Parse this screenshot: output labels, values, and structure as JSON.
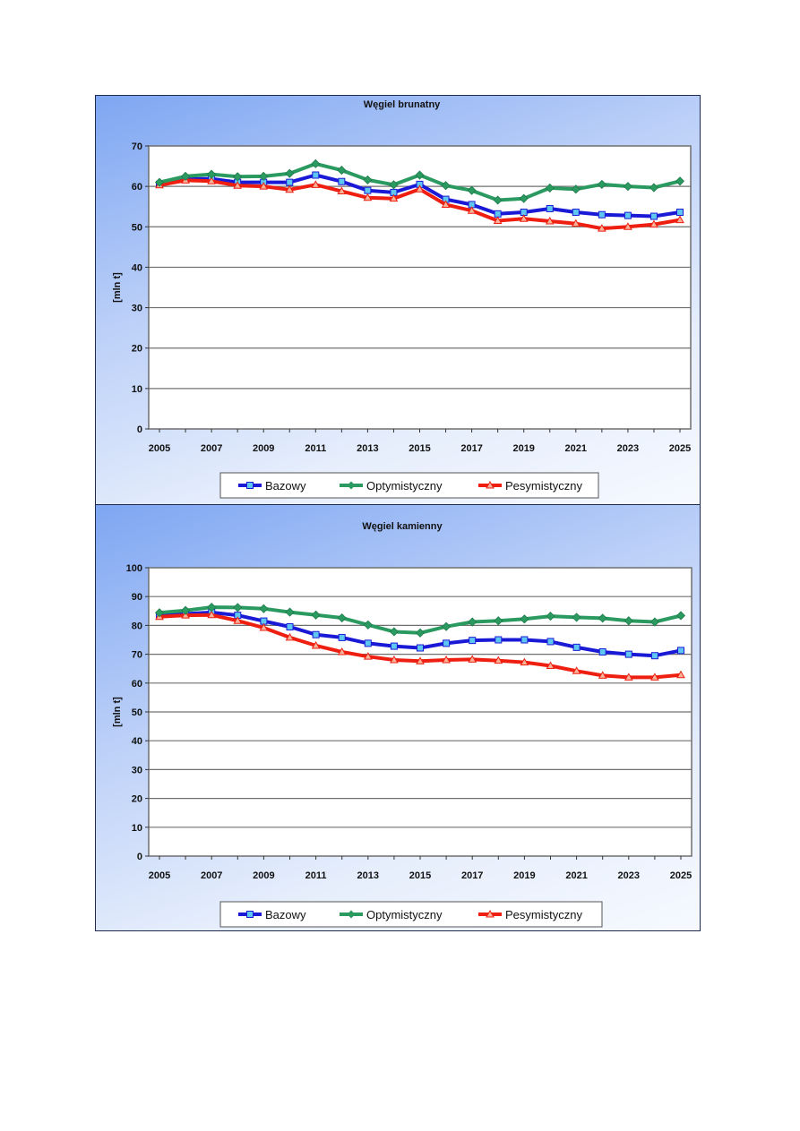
{
  "legend": [
    "Bazowy",
    "Optymistyczny",
    "Pesymistyczny"
  ],
  "colors": {
    "Bazowy": "#1a1ad6",
    "Optymistyczny": "#2a9a60",
    "Pesymistyczny": "#ee1f10",
    "Bazowy_marker": "#5ec6f0",
    "Pesymistyczny_marker": "#f7b39a"
  },
  "chart_data": [
    {
      "type": "line",
      "title": "Węgiel brunatny",
      "xlabel": "",
      "ylabel": "[mln t]",
      "ylim": [
        0,
        70
      ],
      "yticks": [
        0,
        10,
        20,
        30,
        40,
        50,
        60,
        70
      ],
      "xticks": [
        "2005",
        "2007",
        "2009",
        "2011",
        "2013",
        "2015",
        "2017",
        "2019",
        "2021",
        "2023",
        "2025"
      ],
      "x": [
        2005,
        2006,
        2007,
        2008,
        2009,
        2010,
        2011,
        2012,
        2013,
        2014,
        2015,
        2016,
        2017,
        2018,
        2019,
        2020,
        2021,
        2022,
        2023,
        2024,
        2025
      ],
      "series": [
        {
          "name": "Bazowy",
          "values": [
            60.5,
            61.8,
            61.9,
            61.0,
            61.0,
            61.0,
            62.8,
            61.2,
            59.0,
            58.5,
            60.5,
            56.8,
            55.5,
            53.2,
            53.6,
            54.5,
            53.6,
            53.0,
            52.8,
            52.6,
            53.6
          ]
        },
        {
          "name": "Optymistyczny",
          "values": [
            61.0,
            62.5,
            63.0,
            62.4,
            62.5,
            63.2,
            65.6,
            64.0,
            61.6,
            60.4,
            62.8,
            60.2,
            59.0,
            56.6,
            57.0,
            59.6,
            59.3,
            60.5,
            60.0,
            59.7,
            61.3
          ]
        },
        {
          "name": "Pesymistyczny",
          "values": [
            60.3,
            61.5,
            61.3,
            60.2,
            60.0,
            59.2,
            60.4,
            58.8,
            57.2,
            57.0,
            59.3,
            55.5,
            54.0,
            51.5,
            52.0,
            51.4,
            50.8,
            49.6,
            50.0,
            50.6,
            51.7
          ]
        }
      ]
    },
    {
      "type": "line",
      "title": "Węgiel kamienny",
      "xlabel": "",
      "ylabel": "[mln t]",
      "ylim": [
        0,
        100
      ],
      "yticks": [
        0,
        10,
        20,
        30,
        40,
        50,
        60,
        70,
        80,
        90,
        100
      ],
      "xticks": [
        "2005",
        "2007",
        "2009",
        "2011",
        "2013",
        "2015",
        "2017",
        "2019",
        "2021",
        "2023",
        "2025"
      ],
      "x": [
        2005,
        2006,
        2007,
        2008,
        2009,
        2010,
        2011,
        2012,
        2013,
        2014,
        2015,
        2016,
        2017,
        2018,
        2019,
        2020,
        2021,
        2022,
        2023,
        2024,
        2025
      ],
      "series": [
        {
          "name": "Bazowy",
          "values": [
            83.5,
            84.0,
            84.5,
            83.5,
            81.5,
            79.5,
            76.8,
            75.8,
            73.8,
            72.8,
            72.2,
            73.8,
            74.8,
            75.0,
            75.0,
            74.4,
            72.4,
            70.8,
            70.0,
            69.5,
            71.3
          ]
        },
        {
          "name": "Optymistyczny",
          "values": [
            84.4,
            85.2,
            86.3,
            86.2,
            85.8,
            84.6,
            83.6,
            82.6,
            80.2,
            77.8,
            77.4,
            79.6,
            81.2,
            81.6,
            82.2,
            83.2,
            82.8,
            82.5,
            81.6,
            81.2,
            83.4
          ]
        },
        {
          "name": "Pesymistyczny",
          "values": [
            83.0,
            83.5,
            83.6,
            81.6,
            79.2,
            75.8,
            73.0,
            70.8,
            69.2,
            68.0,
            67.6,
            68.0,
            68.2,
            67.8,
            67.2,
            66.0,
            64.2,
            62.6,
            62.0,
            62.0,
            62.8
          ]
        }
      ]
    }
  ]
}
